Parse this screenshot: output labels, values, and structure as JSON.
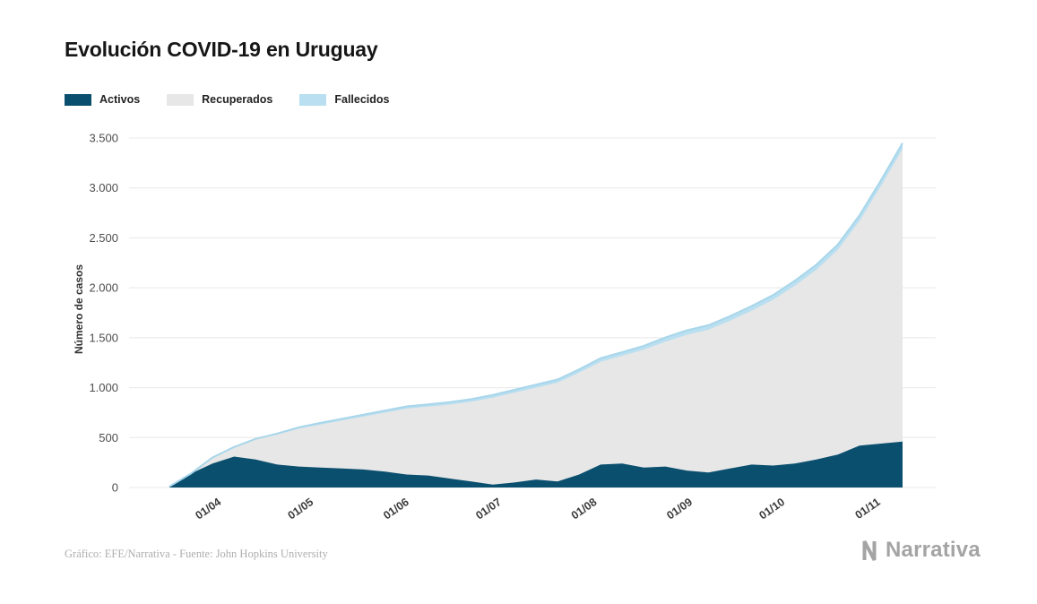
{
  "page": {
    "title": "Evolución COVID-19 en Uruguay",
    "source": "Gráfico: EFE/Narrativa - Fuente: John Hopkins University",
    "brand": "Narrativa"
  },
  "chart_data": {
    "type": "area",
    "stacked": true,
    "title": "Evolución COVID-19 en Uruguay",
    "xlabel": "",
    "ylabel": "Número de casos",
    "ylim": [
      0,
      3500
    ],
    "y_ticks": [
      0,
      500,
      1000,
      1500,
      2000,
      2500,
      3000,
      3500
    ],
    "y_tick_labels": [
      "0",
      "500",
      "1.000",
      "1.500",
      "2.000",
      "2.500",
      "3.000",
      "3.500"
    ],
    "grid": "horizontal",
    "legend_position": "top-left",
    "x_ticks": [
      {
        "label": "01/04",
        "date": "2020-04-01"
      },
      {
        "label": "01/05",
        "date": "2020-05-01"
      },
      {
        "label": "01/06",
        "date": "2020-06-01"
      },
      {
        "label": "01/07",
        "date": "2020-07-01"
      },
      {
        "label": "01/08",
        "date": "2020-08-01"
      },
      {
        "label": "01/09",
        "date": "2020-09-01"
      },
      {
        "label": "01/10",
        "date": "2020-10-01"
      },
      {
        "label": "01/11",
        "date": "2020-11-01"
      }
    ],
    "dates": [
      "2020-03-15",
      "2020-03-22",
      "2020-03-29",
      "2020-04-05",
      "2020-04-12",
      "2020-04-19",
      "2020-04-26",
      "2020-05-03",
      "2020-05-10",
      "2020-05-17",
      "2020-05-24",
      "2020-05-31",
      "2020-06-07",
      "2020-06-14",
      "2020-06-21",
      "2020-06-28",
      "2020-07-05",
      "2020-07-12",
      "2020-07-19",
      "2020-07-26",
      "2020-08-02",
      "2020-08-09",
      "2020-08-16",
      "2020-08-23",
      "2020-08-30",
      "2020-09-06",
      "2020-09-13",
      "2020-09-20",
      "2020-09-27",
      "2020-10-04",
      "2020-10-11",
      "2020-10-18",
      "2020-10-25",
      "2020-11-01",
      "2020-11-08"
    ],
    "series": [
      {
        "name": "Activos",
        "color": "#0b4f6f",
        "values": [
          10,
          140,
          240,
          310,
          280,
          230,
          210,
          200,
          190,
          180,
          160,
          130,
          120,
          90,
          60,
          30,
          50,
          80,
          60,
          130,
          230,
          240,
          200,
          210,
          170,
          150,
          190,
          230,
          220,
          240,
          280,
          330,
          420,
          440,
          460
        ]
      },
      {
        "name": "Recuperados",
        "color": "#e7e7e7",
        "values": [
          0,
          0,
          60,
          90,
          200,
          300,
          380,
          430,
          480,
          530,
          590,
          660,
          690,
          740,
          800,
          870,
          900,
          920,
          990,
          1020,
          1030,
          1080,
          1180,
          1250,
          1360,
          1430,
          1480,
          1540,
          1660,
          1780,
          1900,
          2050,
          2250,
          2580,
          2930
        ]
      },
      {
        "name": "Fallecidos",
        "color": "#b9dff0",
        "values": [
          0,
          0,
          1,
          6,
          7,
          10,
          12,
          17,
          18,
          20,
          21,
          22,
          23,
          24,
          25,
          27,
          28,
          30,
          31,
          33,
          35,
          36,
          39,
          42,
          44,
          45,
          46,
          47,
          48,
          50,
          51,
          53,
          55,
          57,
          60
        ]
      }
    ]
  }
}
